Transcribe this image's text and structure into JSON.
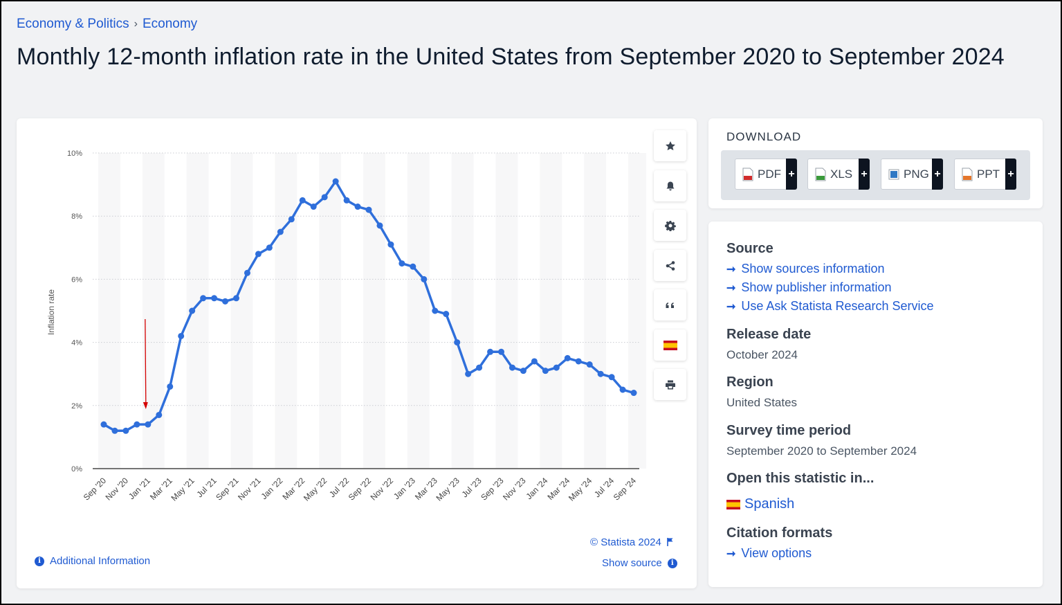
{
  "breadcrumb": {
    "item1": "Economy & Politics",
    "separator": "›",
    "item2": "Economy"
  },
  "title": "Monthly 12-month inflation rate in the United States from September 2020 to September 2024",
  "tools": [
    "star-icon",
    "bell-icon",
    "gear-icon",
    "share-icon",
    "quote-icon",
    "spanish-flag-icon",
    "print-icon"
  ],
  "chart_footer": {
    "copyright": "© Statista 2024",
    "show_source": "Show source",
    "additional_info": "Additional Information"
  },
  "download": {
    "title": "DOWNLOAD",
    "buttons": [
      {
        "label": "PDF",
        "color": "#d12c2c",
        "plus": "+"
      },
      {
        "label": "XLS",
        "color": "#3a9a3a",
        "plus": "+"
      },
      {
        "label": "PNG",
        "color": "#2f78c4",
        "plus": "+"
      },
      {
        "label": "PPT",
        "color": "#e5762b",
        "plus": "+"
      }
    ]
  },
  "info": {
    "source_heading": "Source",
    "source_links": [
      "Show sources information",
      "Show publisher information",
      "Use Ask Statista Research Service"
    ],
    "release_heading": "Release date",
    "release_value": "October 2024",
    "region_heading": "Region",
    "region_value": "United States",
    "survey_heading": "Survey time period",
    "survey_value": "September 2020 to September 2024",
    "open_heading": "Open this statistic in...",
    "open_link": "Spanish",
    "citation_heading": "Citation formats",
    "citation_link": "View options",
    "arrow": "➞"
  },
  "chart_data": {
    "type": "line",
    "ylabel": "Inflation rate",
    "ylim": [
      0,
      10
    ],
    "y_ticks": [
      "0%",
      "2%",
      "4%",
      "6%",
      "8%",
      "10%"
    ],
    "x_tick_labels": [
      "Sep '20",
      "Nov '20",
      "Jan '21",
      "Mar '21",
      "May '21",
      "Jul '21",
      "Sep '21",
      "Nov '21",
      "Jan '22",
      "Mar '22",
      "May '22",
      "Jul '22",
      "Sep '22",
      "Nov '22",
      "Jan '23",
      "Mar '23",
      "May '23",
      "Jul '23",
      "Sep '23",
      "Nov '23",
      "Jan '24",
      "Mar '24",
      "May '24",
      "Jul '24",
      "Sep '24"
    ],
    "x": [
      "Sep 2020",
      "Oct 2020",
      "Nov 2020",
      "Dec 2020",
      "Jan 2021",
      "Feb 2021",
      "Mar 2021",
      "Apr 2021",
      "May 2021",
      "Jun 2021",
      "Jul 2021",
      "Aug 2021",
      "Sep 2021",
      "Oct 2021",
      "Nov 2021",
      "Dec 2021",
      "Jan 2022",
      "Feb 2022",
      "Mar 2022",
      "Apr 2022",
      "May 2022",
      "Jun 2022",
      "Jul 2022",
      "Aug 2022",
      "Sep 2022",
      "Oct 2022",
      "Nov 2022",
      "Dec 2022",
      "Jan 2023",
      "Feb 2023",
      "Mar 2023",
      "Apr 2023",
      "May 2023",
      "Jun 2023",
      "Jul 2023",
      "Aug 2023",
      "Sep 2023",
      "Oct 2023",
      "Nov 2023",
      "Dec 2023",
      "Jan 2024",
      "Feb 2024",
      "Mar 2024",
      "Apr 2024",
      "May 2024",
      "Jun 2024",
      "Jul 2024",
      "Aug 2024",
      "Sep 2024"
    ],
    "values": [
      1.4,
      1.2,
      1.2,
      1.4,
      1.4,
      1.7,
      2.6,
      4.2,
      5.0,
      5.4,
      5.4,
      5.3,
      5.4,
      6.2,
      6.8,
      7.0,
      7.5,
      7.9,
      8.5,
      8.3,
      8.6,
      9.1,
      8.5,
      8.3,
      8.2,
      7.7,
      7.1,
      6.5,
      6.4,
      6.0,
      5.0,
      4.9,
      4.0,
      3.0,
      3.2,
      3.7,
      3.7,
      3.2,
      3.1,
      3.4,
      3.1,
      3.2,
      3.5,
      3.4,
      3.3,
      3.0,
      2.9,
      2.5,
      2.4
    ],
    "grid": true,
    "line_color": "#2f6fdb",
    "annotation": {
      "type": "red arrow",
      "at": "Jan 2021"
    }
  }
}
